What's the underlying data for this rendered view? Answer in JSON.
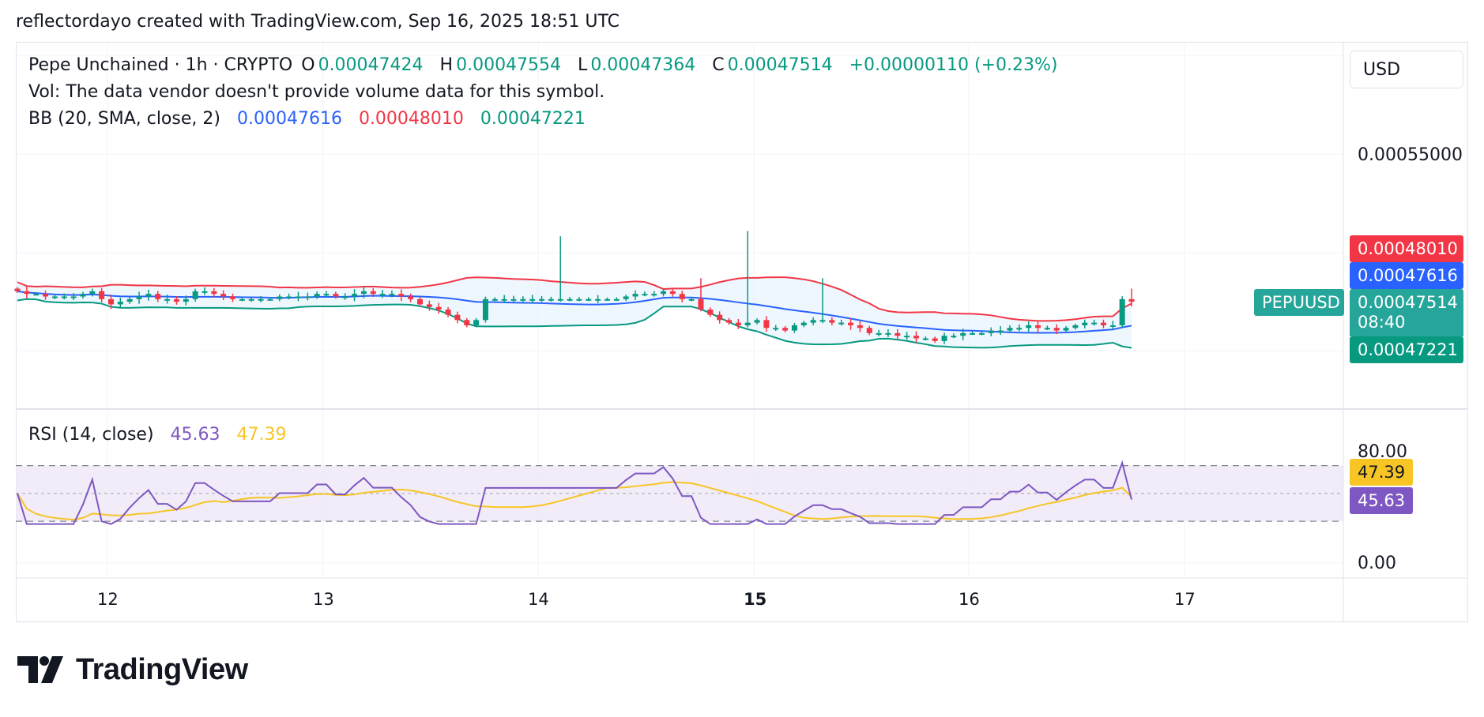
{
  "header": {
    "credit": "reflectordayo created with TradingView.com, Sep 16, 2025 18:51 UTC"
  },
  "legend": {
    "symbol": "Pepe Unchained · 1h · CRYPTO",
    "o_label": "O",
    "o_value": "0.00047424",
    "h_label": "H",
    "h_value": "0.00047554",
    "l_label": "L",
    "l_value": "0.00047364",
    "c_label": "C",
    "c_value": "0.00047514",
    "change": "+0.00000110 (+0.23%)",
    "vol": "Vol: The data vendor doesn't provide volume data for this symbol.",
    "bb_label": "BB (20, SMA, close, 2)",
    "bb_basis": "0.00047616",
    "bb_upper": "0.00048010",
    "bb_lower": "0.00047221",
    "rsi_label": "RSI (14, close)",
    "rsi_value": "45.63",
    "rsi_ma": "47.39"
  },
  "currency_button": "USD",
  "price_axis": {
    "ticks": [
      "0.00055000"
    ]
  },
  "tags": {
    "bb_upper": "0.00048010",
    "bb_basis": "0.00047616",
    "symbol": "PEPUUSD",
    "last_price": "0.00047514",
    "countdown": "08:40",
    "bb_lower": "0.00047221",
    "rsi_ma": "47.39",
    "rsi": "45.63"
  },
  "rsi_axis": {
    "top": "80.00",
    "bottom": "0.00"
  },
  "time_axis": [
    "12",
    "13",
    "14",
    "15",
    "16",
    "17"
  ],
  "brand": "TradingView",
  "colors": {
    "up": "#089981",
    "down": "#f23645",
    "basis": "#2962ff",
    "upper": "#f23645",
    "lower": "#089981",
    "rsi": "#7e57c2",
    "rsi_ma": "#f7c524",
    "band_fill": "#e3f2fd",
    "rsi_band": "#ede7f6"
  },
  "chart_data": [
    {
      "type": "candlestick",
      "title": "Pepe Unchained · 1h · CRYPTO",
      "x_axis": "time",
      "y_axis_range": [
        0.000434,
        0.000574
      ],
      "candles_every_hour_close": [
        0.000479,
        0.000478,
        0.000478,
        0.000477,
        0.000477,
        0.000477,
        0.000477,
        0.000478,
        0.000479,
        0.000476,
        0.000474,
        0.000475,
        0.000476,
        0.000477,
        0.000478,
        0.000476,
        0.000476,
        0.000475,
        0.000476,
        0.000479,
        0.000479,
        0.000478,
        0.000477,
        0.000476,
        0.000476,
        0.000476,
        0.000476,
        0.000476,
        0.000477,
        0.000477,
        0.000477,
        0.000477,
        0.000478,
        0.000478,
        0.000477,
        0.000477,
        0.000478,
        0.000479,
        0.000478,
        0.000478,
        0.000478,
        0.000477,
        0.000476,
        0.000474,
        0.000473,
        0.000472,
        0.00047,
        0.000468,
        0.000466,
        0.000468,
        0.000476,
        0.000476,
        0.000476,
        0.000476,
        0.000476,
        0.000476,
        0.000476,
        0.000476,
        0.000476,
        0.000476,
        0.000476,
        0.000476,
        0.000476,
        0.000476,
        0.000476,
        0.000477,
        0.000478,
        0.000478,
        0.000478,
        0.000479,
        0.000478,
        0.000476,
        0.000476,
        0.000472,
        0.00047,
        0.000468,
        0.000467,
        0.000466,
        0.000467,
        0.000468,
        0.000465,
        0.000465,
        0.000464,
        0.000466,
        0.000467,
        0.000468,
        0.000468,
        0.000467,
        0.000467,
        0.000466,
        0.000465,
        0.000463,
        0.000463,
        0.000463,
        0.000462,
        0.000462,
        0.000461,
        0.000461,
        0.00046,
        0.000462,
        0.000462,
        0.000463,
        0.000463,
        0.000463,
        0.000464,
        0.000464,
        0.000465,
        0.000465,
        0.000466,
        0.000465,
        0.000465,
        0.000464,
        0.000465,
        0.000466,
        0.000467,
        0.000467,
        0.000466,
        0.000466,
        0.000476,
        0.000475
      ],
      "bb_last": {
        "basis": 0.00047616,
        "upper": 0.0004801,
        "lower": 0.00047221
      },
      "last": 0.00047514
    },
    {
      "type": "line",
      "title": "RSI (14, close)",
      "y_axis_range": [
        0,
        80
      ],
      "reference_lines": [
        70,
        50,
        30
      ],
      "series": [
        {
          "name": "RSI",
          "last": 45.63
        },
        {
          "name": "RSI MA",
          "last": 47.39
        }
      ]
    }
  ]
}
